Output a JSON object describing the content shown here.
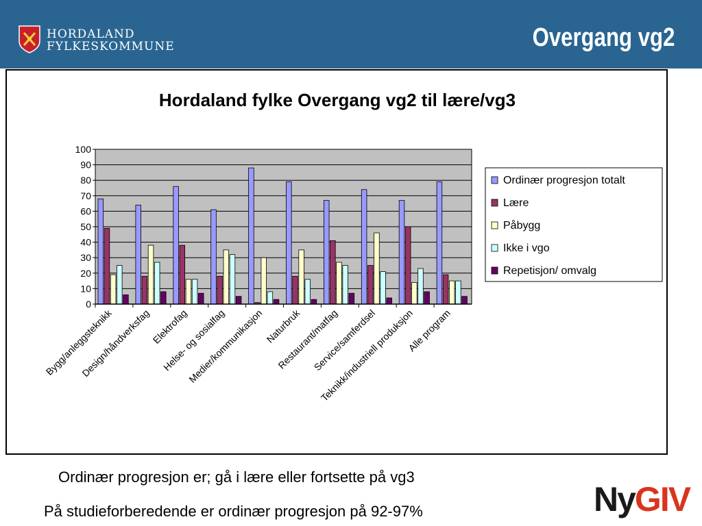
{
  "header": {
    "logo_line1": "HORDALAND",
    "logo_line2": "FYLKESKOMMUNE",
    "slide_title": "Overgang vg2",
    "colors": {
      "header_bg": "#2a6591",
      "logo_red": "#c8202b"
    }
  },
  "captions": {
    "line1": "Ordinær progresjon er; gå i lære eller fortsette på vg3",
    "line2": "På studieforberedende er ordinær progresjon på 92-97%"
  },
  "brand_logo": {
    "part1": "Ny",
    "part2": "GIV"
  },
  "chart_data": {
    "type": "bar",
    "title": "Hordaland fylke Overgang vg2 til lære/vg3",
    "xlabel": "",
    "ylabel": "",
    "ylim": [
      0,
      100
    ],
    "yticks": [
      0,
      10,
      20,
      30,
      40,
      50,
      60,
      70,
      80,
      90,
      100
    ],
    "grid": true,
    "legend_position": "right",
    "categories": [
      "Bygg/anleggsteknikk",
      "Design/håndverksfag",
      "Elektrofag",
      "Helse- og sosialfag",
      "Medier/kommunikasjon",
      "Naturbruk",
      "Restaurant/matfag",
      "Service/samferdsel",
      "Teknikk/industriell produksjon",
      "Alle program"
    ],
    "series": [
      {
        "name": "Ordinær progresjon totalt",
        "color": "#9999ff",
        "values": [
          68,
          64,
          76,
          61,
          88,
          79,
          67,
          74,
          67,
          79
        ]
      },
      {
        "name": "Lære",
        "color": "#993366",
        "values": [
          49,
          18,
          38,
          18,
          1,
          18,
          41,
          25,
          50,
          19
        ]
      },
      {
        "name": "Påbygg",
        "color": "#ffffcc",
        "values": [
          19,
          38,
          16,
          35,
          30,
          35,
          27,
          46,
          14,
          15
        ]
      },
      {
        "name": "Ikke i vgo",
        "color": "#ccffff",
        "values": [
          25,
          27,
          16,
          32,
          8,
          16,
          25,
          21,
          23,
          15
        ]
      },
      {
        "name": "Repetisjon/ omvalg",
        "color": "#660066",
        "values": [
          6,
          8,
          7,
          5,
          3,
          3,
          7,
          4,
          8,
          5
        ]
      }
    ]
  }
}
